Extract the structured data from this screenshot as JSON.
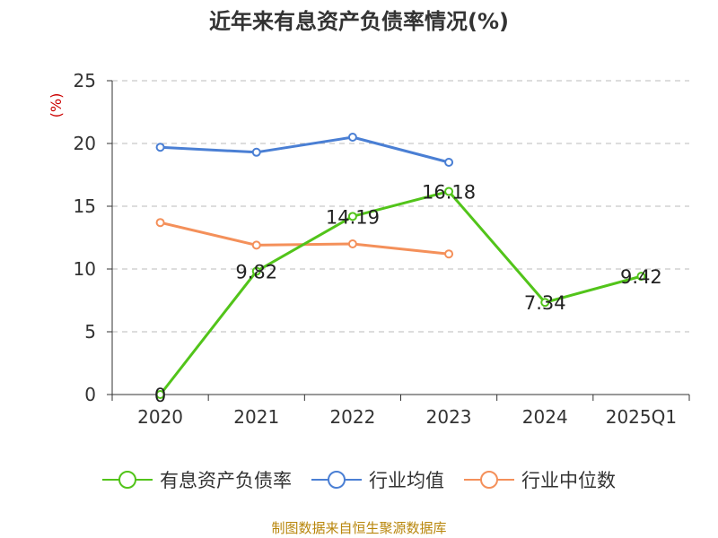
{
  "chart_data": {
    "type": "line",
    "title": "近年来有息资产负债率情况(%)",
    "ylabel": "(%)",
    "categories": [
      "2020",
      "2021",
      "2022",
      "2023",
      "2024",
      "2025Q1"
    ],
    "ylim": [
      0,
      25
    ],
    "yticks": [
      "0",
      "5",
      "10",
      "15",
      "20",
      "25"
    ],
    "grid": true,
    "legend_position": "bottom",
    "series": [
      {
        "name": "有息资产负债率",
        "color": "#52c41a",
        "values": [
          0,
          9.82,
          14.19,
          16.18,
          7.34,
          9.42
        ],
        "labels": [
          "0",
          "9.82",
          "14.19",
          "16.18",
          "7.34",
          "9.42"
        ]
      },
      {
        "name": "行业均值",
        "color": "#4a7fd4",
        "values": [
          19.7,
          19.3,
          20.5,
          18.5,
          null,
          null
        ]
      },
      {
        "name": "行业中位数",
        "color": "#f4905a",
        "values": [
          13.7,
          11.9,
          12.0,
          11.2,
          null,
          null
        ]
      }
    ],
    "source": "制图数据来自恒生聚源数据库"
  }
}
